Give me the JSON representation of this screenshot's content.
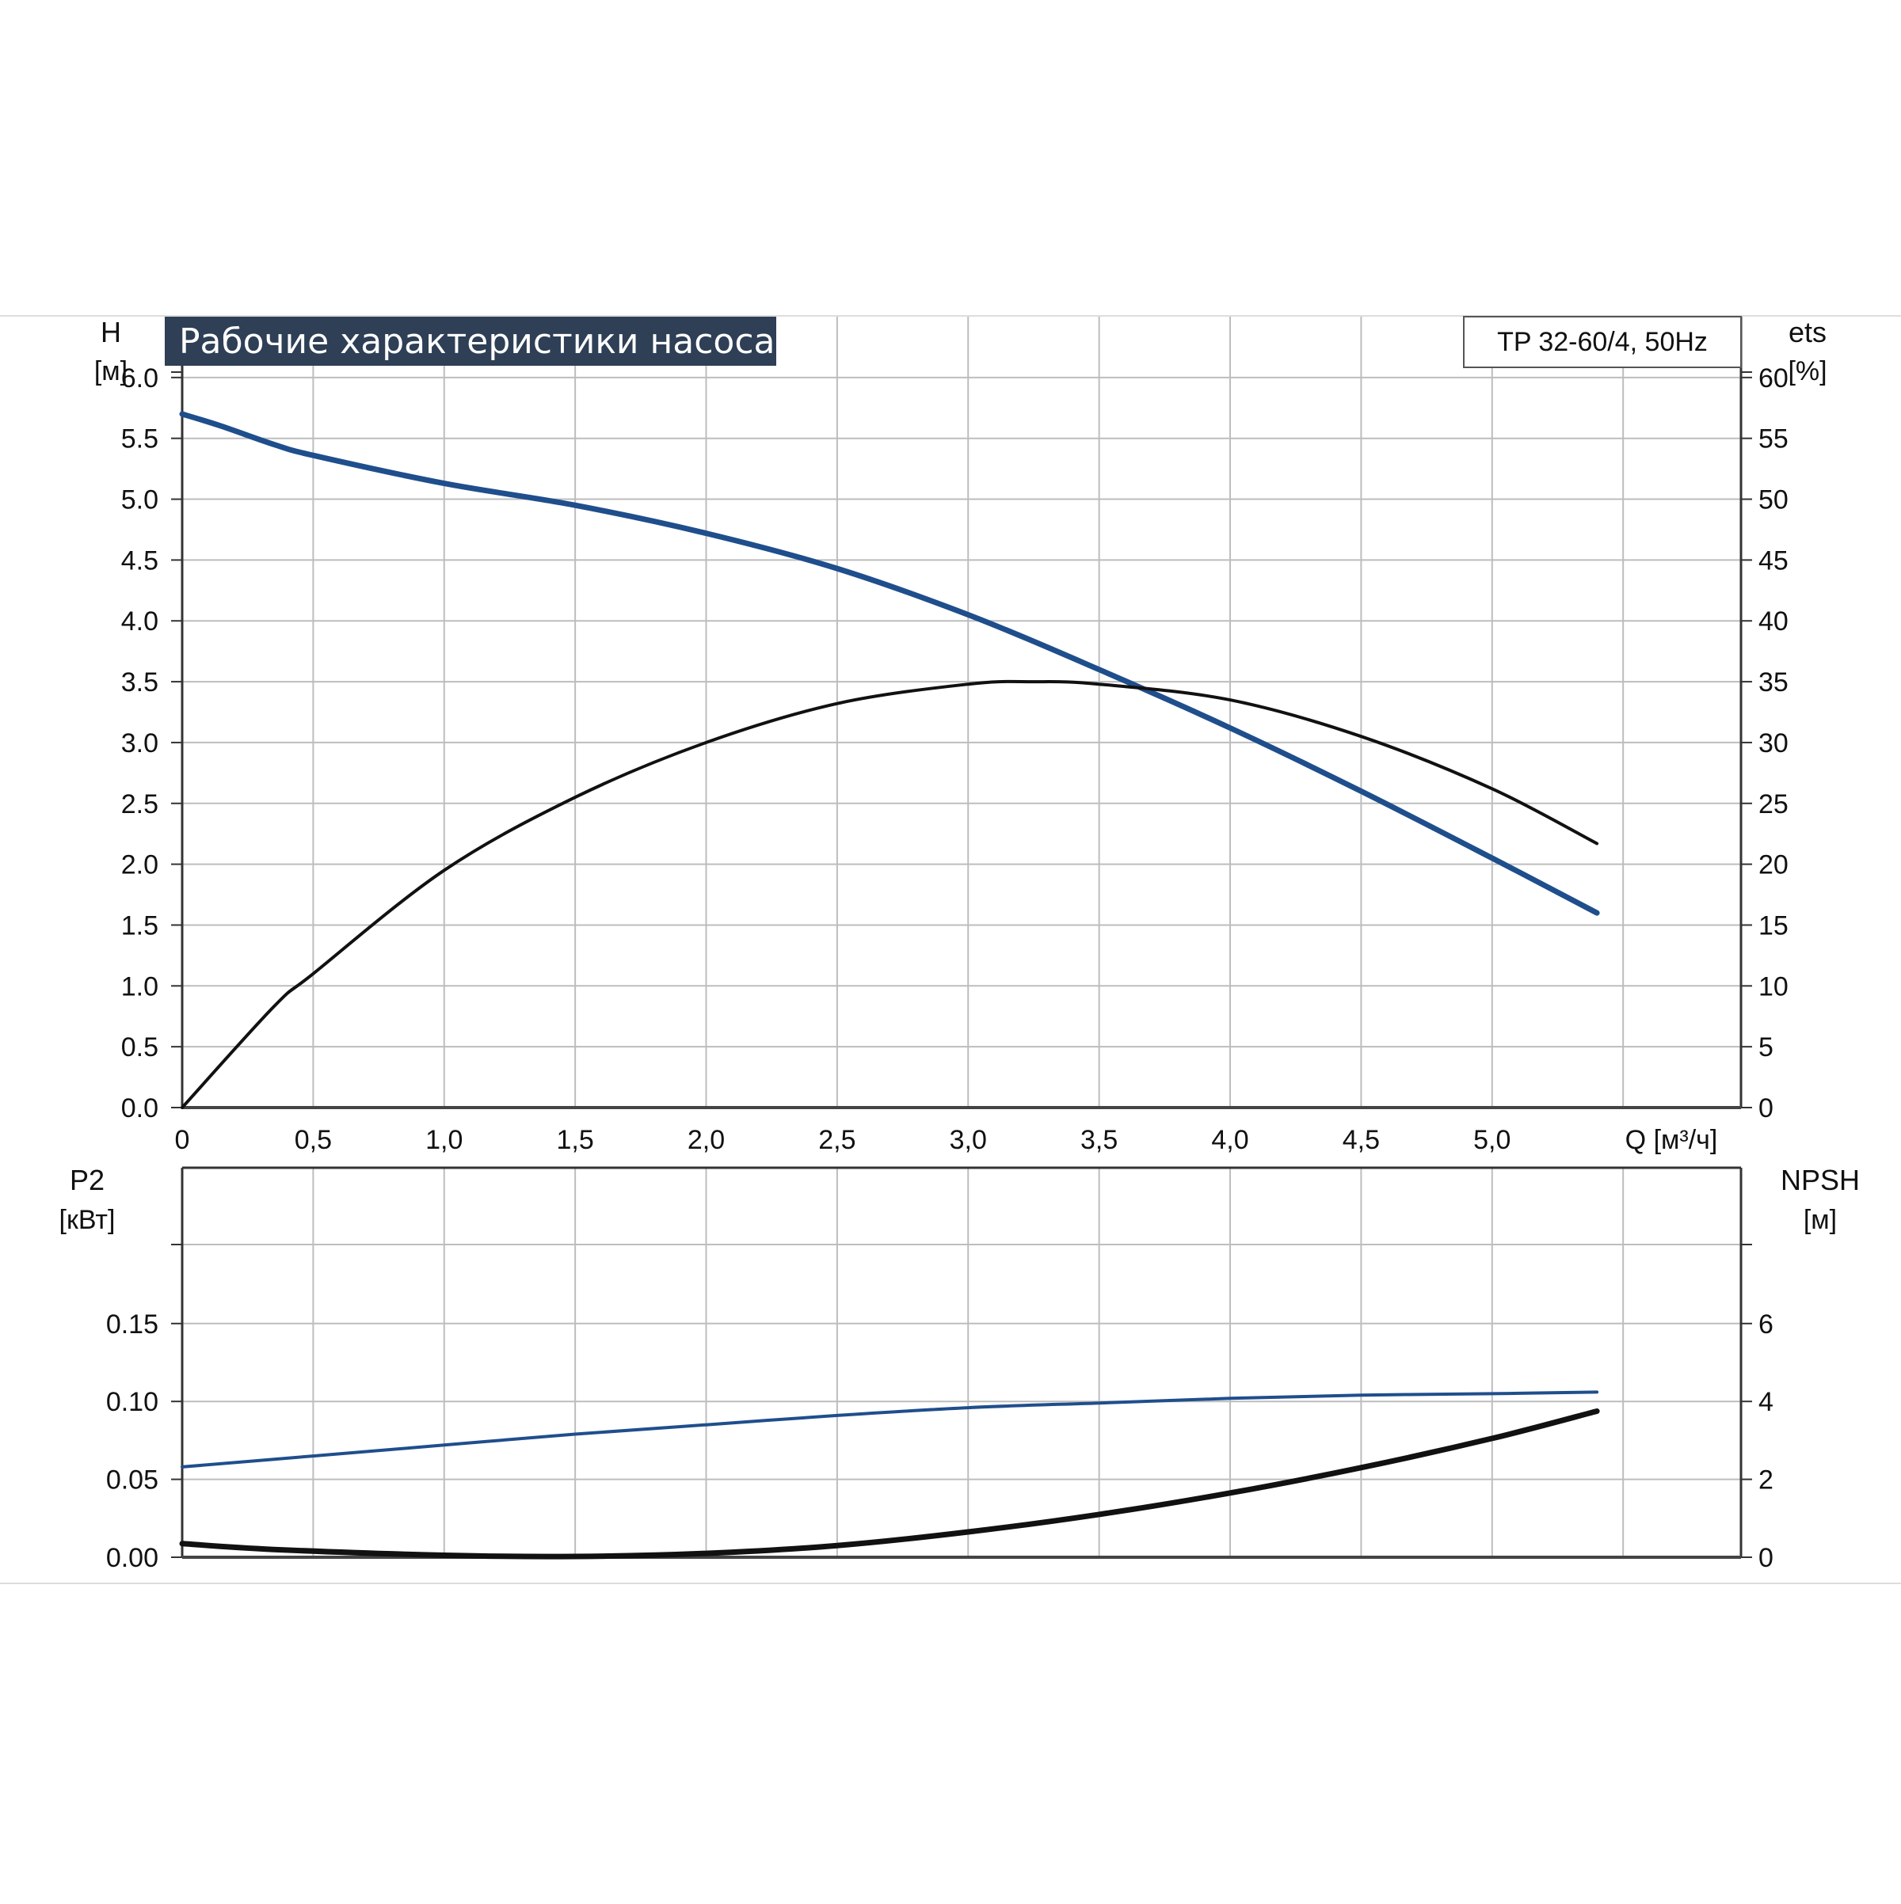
{
  "title": "Рабочие характеристики насоса",
  "model_label": "TP 32-60/4, 50Hz",
  "colors": {
    "blue": "#1f4e8c",
    "black": "#111111",
    "grid": "#bdbdbd",
    "banner": "#2e3f56"
  },
  "chart_data": [
    {
      "type": "line",
      "name": "head-efficiency",
      "x_label": "Q [м³/ч]",
      "x_ticks": [
        "0",
        "0,5",
        "1,0",
        "1,5",
        "2,0",
        "2,5",
        "3,0",
        "3,5",
        "4,0",
        "4,5",
        "5,0"
      ],
      "xlim": [
        0,
        5.95
      ],
      "y_left": {
        "label": [
          "H",
          "[м]"
        ],
        "ylim": [
          0,
          6.5
        ],
        "ticks": [
          "0.0",
          "0.5",
          "1.0",
          "1.5",
          "2.0",
          "2.5",
          "3.0",
          "3.5",
          "4.0",
          "4.5",
          "5.0",
          "5.5",
          "6.0"
        ]
      },
      "y_right": {
        "label": [
          "ets",
          "[%]"
        ],
        "ylim": [
          0,
          65
        ],
        "ticks": [
          "0",
          "5",
          "10",
          "15",
          "20",
          "25",
          "30",
          "35",
          "40",
          "45",
          "50",
          "55",
          "60"
        ]
      },
      "grid": true,
      "series": [
        {
          "axis": "left",
          "color": "#1f4e8c",
          "x": [
            0,
            0.15,
            0.35,
            0.5,
            1.0,
            1.5,
            2.0,
            2.5,
            3.0,
            3.5,
            4.0,
            4.5,
            5.0,
            5.4
          ],
          "y": [
            5.7,
            5.6,
            5.45,
            5.36,
            5.13,
            4.95,
            4.72,
            4.43,
            4.05,
            3.6,
            3.12,
            2.6,
            2.05,
            1.6
          ]
        },
        {
          "axis": "right",
          "color": "#111111",
          "x": [
            0,
            0.35,
            0.5,
            1.0,
            1.5,
            2.0,
            2.5,
            3.0,
            3.25,
            3.5,
            4.0,
            4.5,
            5.0,
            5.4
          ],
          "y": [
            0,
            8.3,
            11,
            19.5,
            25.5,
            30,
            33.2,
            34.8,
            35,
            34.8,
            33.5,
            30.5,
            26.2,
            21.7
          ]
        }
      ]
    },
    {
      "type": "line",
      "name": "power-npsh",
      "x_label": "",
      "xlim": [
        0,
        5.95
      ],
      "y_left": {
        "label": [
          "P2",
          "[кВт]"
        ],
        "ylim": [
          0,
          0.25
        ],
        "ticks": [
          "0.00",
          "0.05",
          "0.10",
          "0.15"
        ]
      },
      "y_right": {
        "label": [
          "NPSH",
          "[м]"
        ],
        "ylim": [
          0,
          10
        ],
        "ticks": [
          "0",
          "2",
          "4",
          "6"
        ]
      },
      "grid": true,
      "series": [
        {
          "axis": "left",
          "color": "#1f4e8c",
          "x": [
            0,
            0.5,
            1.0,
            1.5,
            2.0,
            2.5,
            3.0,
            3.5,
            4.0,
            4.5,
            5.0,
            5.4
          ],
          "y": [
            0.058,
            0.065,
            0.072,
            0.079,
            0.085,
            0.091,
            0.096,
            0.099,
            0.102,
            0.104,
            0.105,
            0.106
          ]
        },
        {
          "axis": "right",
          "color": "#111111",
          "x": [
            0,
            0.35,
            1.0,
            1.5,
            2.0,
            2.5,
            3.0,
            3.5,
            4.0,
            4.5,
            5.0,
            5.4
          ],
          "y": [
            0.35,
            0.2,
            0.05,
            0.02,
            0.1,
            0.3,
            0.65,
            1.1,
            1.65,
            2.3,
            3.05,
            3.75
          ]
        }
      ]
    }
  ]
}
